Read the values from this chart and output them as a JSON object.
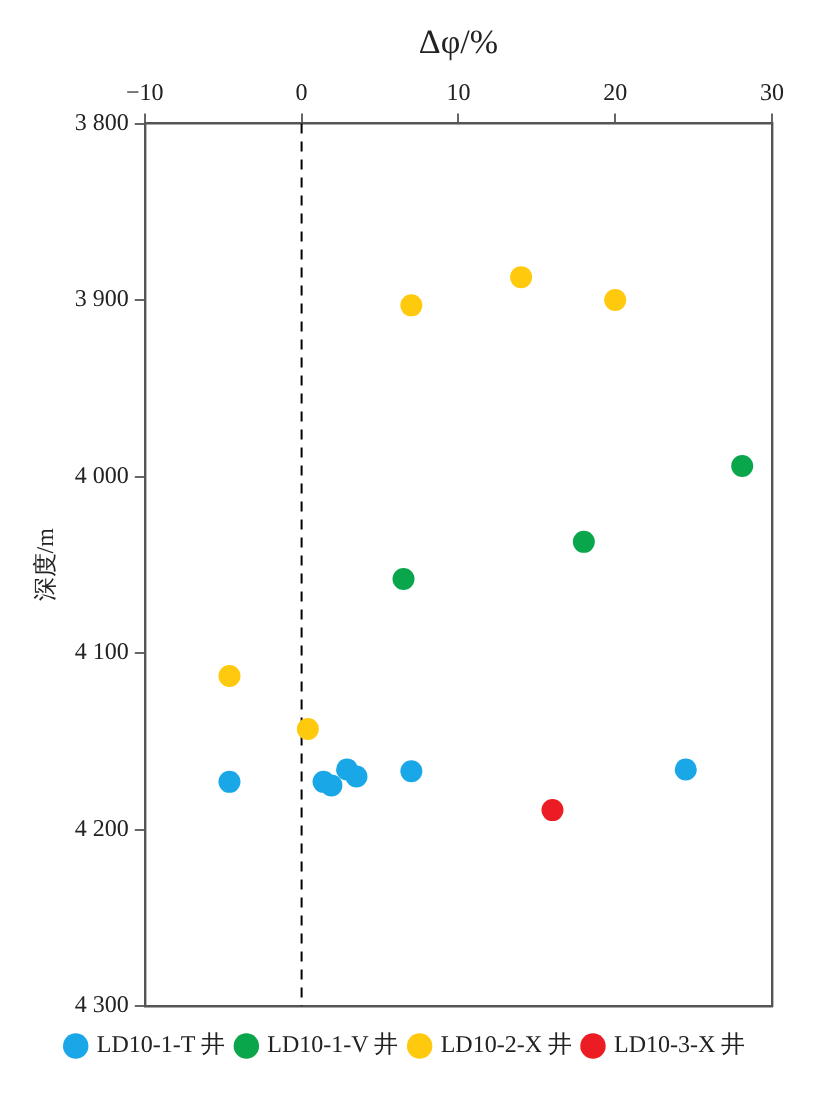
{
  "chart_data": {
    "type": "scatter",
    "xlabel": "Δφ/%",
    "ylabel": "深度/m",
    "xlim": [
      -10,
      30
    ],
    "xticks": [
      {
        "value": -10,
        "label": "−10"
      },
      0,
      10,
      20,
      30
    ],
    "ylim": [
      4300,
      3800
    ],
    "yticks": [
      {
        "value": 3800,
        "label": "3 800"
      },
      {
        "value": 3900,
        "label": "3 900"
      },
      {
        "value": 4000,
        "label": "4 000"
      },
      {
        "value": 4100,
        "label": "4 100"
      },
      {
        "value": 4200,
        "label": "4 200"
      },
      {
        "value": 4300,
        "label": "4 300"
      }
    ],
    "grid": false,
    "legend": "bottom",
    "marker": "circle",
    "ref_lines": [
      {
        "axis": "x",
        "value": 0,
        "color": "#000000",
        "line_style": "dashed"
      }
    ],
    "series": [
      {
        "name": "LD10-1-T 井",
        "color": "#1aa7e8",
        "x": [
          -4.6,
          1.4,
          1.9,
          2.9,
          3.5,
          7.0,
          24.5
        ],
        "values": [
          4173,
          4173,
          4175,
          4166,
          4170,
          4167,
          4166
        ]
      },
      {
        "name": "LD10-1-V 井",
        "color": "#0aa64b",
        "x": [
          28.1,
          18.0,
          6.5
        ],
        "values": [
          3994,
          4037,
          4058
        ]
      },
      {
        "name": "LD10-2-X 井",
        "color": "#ffc90e",
        "x": [
          7.0,
          14.0,
          20.0,
          -4.6,
          0.4
        ],
        "values": [
          3903,
          3887,
          3900,
          4113,
          4143
        ]
      },
      {
        "name": "LD10-3-X 井",
        "color": "#ec1c24",
        "x": [
          16.0
        ],
        "values": [
          4189
        ]
      }
    ]
  }
}
